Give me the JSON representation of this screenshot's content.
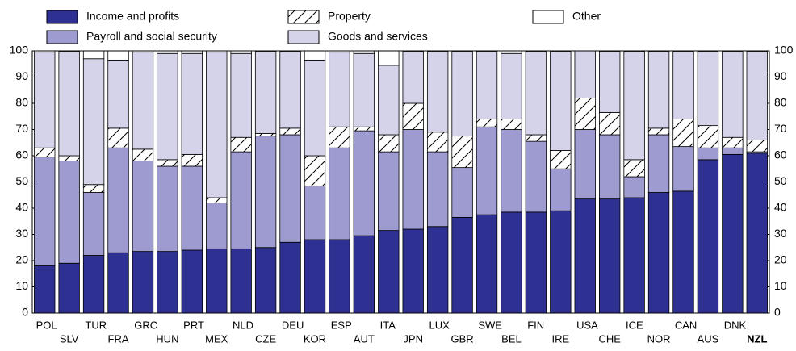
{
  "chart_data": {
    "type": "stacked_bar",
    "categories": [
      "POL",
      "SLV",
      "TUR",
      "FRA",
      "GRC",
      "HUN",
      "PRT",
      "MEX",
      "NLD",
      "CZE",
      "DEU",
      "KOR",
      "ESP",
      "AUT",
      "ITA",
      "JPN",
      "LUX",
      "GBR",
      "SWE",
      "BEL",
      "FIN",
      "IRE",
      "USA",
      "CHE",
      "ICE",
      "NOR",
      "CAN",
      "AUS",
      "DNK",
      "NZL"
    ],
    "series": [
      {
        "name": "Income and profits",
        "color": "#2e3192",
        "values": [
          18,
          19,
          22,
          23,
          23.5,
          23.5,
          24,
          24.5,
          24.5,
          25,
          27,
          28,
          28,
          29.5,
          31.5,
          32,
          33,
          36.5,
          37.5,
          38.5,
          38.5,
          39,
          43.5,
          43.5,
          44,
          46,
          46.5,
          58.5,
          60.5,
          61
        ]
      },
      {
        "name": "Payroll and social security",
        "color": "#9d9bd0",
        "values": [
          41.5,
          39,
          24,
          40,
          34.5,
          32.5,
          32,
          17.5,
          37,
          42.5,
          41,
          20.5,
          35,
          40,
          30,
          38,
          28.5,
          19,
          33.5,
          31.5,
          27,
          16,
          26.5,
          24.5,
          8,
          22,
          17,
          4.5,
          2.5,
          0.5
        ]
      },
      {
        "name": "Property",
        "color": "#ffffff",
        "pattern": "hatch",
        "values": [
          3.5,
          2,
          3,
          7.5,
          4.5,
          2.5,
          4.5,
          2,
          5.5,
          1,
          2.5,
          11.5,
          8,
          1.5,
          6.5,
          10,
          7.5,
          12,
          3,
          4,
          2.5,
          7,
          12,
          8.5,
          6.5,
          2.5,
          10.5,
          8.5,
          4,
          4.5
        ]
      },
      {
        "name": "Goods and services",
        "color": "#d4d3ea",
        "values": [
          36.5,
          39.7,
          48,
          26,
          37,
          40.5,
          38.5,
          55.5,
          32,
          31.2,
          29.2,
          36.5,
          28.5,
          28,
          26.5,
          19.7,
          30.7,
          32.2,
          25.7,
          25,
          31.7,
          37.7,
          18,
          23.2,
          41.2,
          29.2,
          25.7,
          28.2,
          32.7,
          33.7
        ]
      },
      {
        "name": "Other",
        "color": "#ffffff",
        "values": [
          0.5,
          0.3,
          3,
          3.5,
          0.5,
          1,
          1,
          0.5,
          1,
          0.3,
          0.3,
          3.5,
          0.5,
          1,
          5.5,
          0.3,
          0.3,
          0.3,
          0.3,
          1,
          0.3,
          0.3,
          0,
          0.3,
          0.3,
          0.3,
          0.3,
          0.3,
          0.3,
          0.3
        ]
      }
    ],
    "ylim": [
      0,
      100
    ],
    "yticks": [
      0,
      10,
      20,
      30,
      40,
      50,
      60,
      70,
      80,
      90,
      100
    ],
    "right_axis": true
  }
}
